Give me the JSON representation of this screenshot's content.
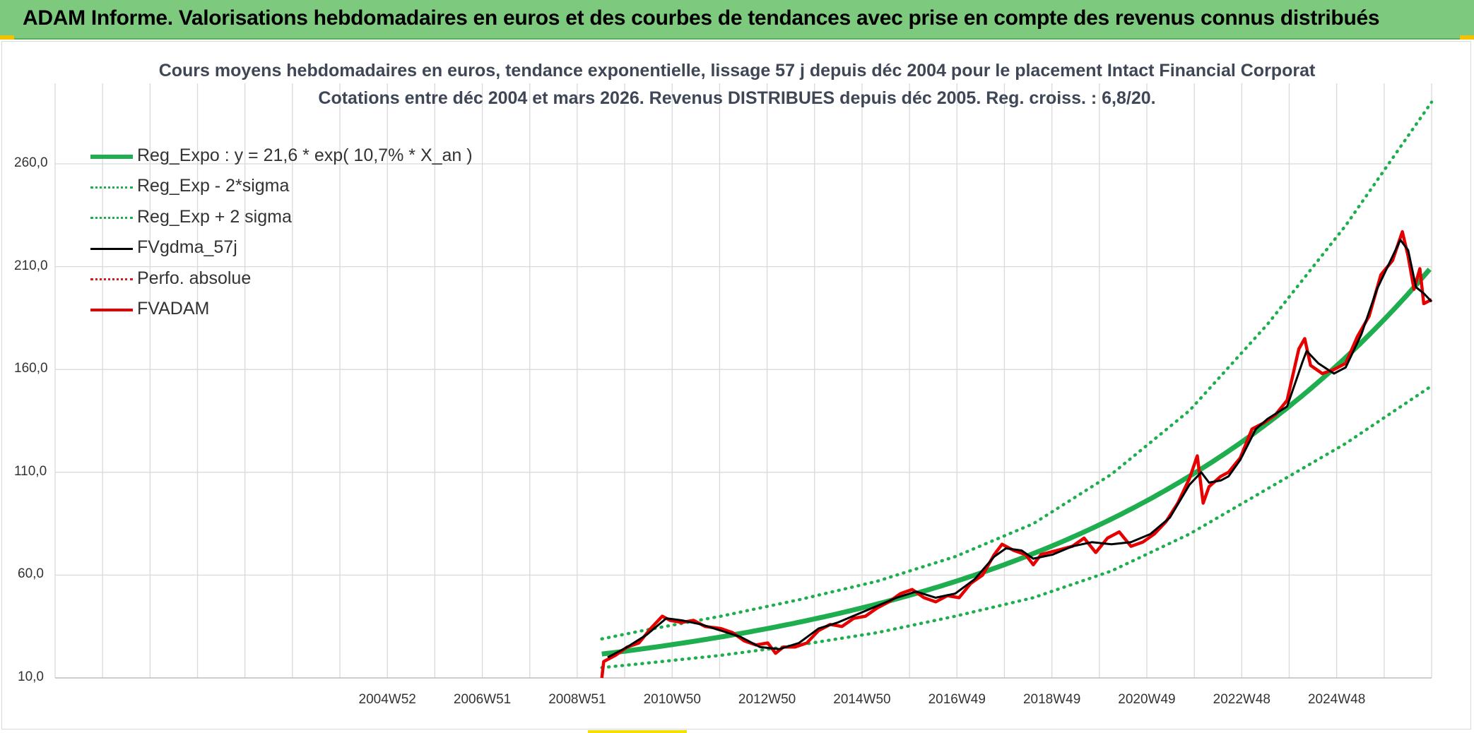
{
  "banner": {
    "title": "ADAM Informe. Valorisations hebdomadaires en euros et des courbes de tendances avec prise en compte des revenus connus distribués"
  },
  "chart_data": {
    "type": "line",
    "title": "Cours moyens hebdomadaires en euros, tendance exponentielle, lissage 57 j depuis déc 2004 pour le placement Intact Financial Corporat",
    "subtitle": "Cotations entre déc 2004 et mars 2026. Revenus DISTRIBUES depuis déc 2005. Reg. croiss. : 6,8/20.",
    "xlabel": "",
    "ylabel": "",
    "x_ticks": [
      "",
      "",
      "",
      "",
      "",
      "",
      "",
      "2004W52",
      "",
      "2006W51",
      "",
      "2008W51",
      "",
      "2010W50",
      "",
      "2012W50",
      "",
      "2014W50",
      "",
      "2016W49",
      "",
      "2018W49",
      "",
      "2020W49",
      "",
      "2022W48",
      "",
      "2024W48",
      ""
    ],
    "x_year_range": [
      1990.95,
      2026.2
    ],
    "ylim": [
      10,
      260
    ],
    "y_ticks": [
      "10,0",
      "60,0",
      "110,0",
      "160,0",
      "210,0",
      "260,0"
    ],
    "y_tick_values": [
      10,
      60,
      110,
      160,
      210,
      260
    ],
    "grid": true,
    "legend_position": "top-left",
    "colors": {
      "reg_expo": "#1fae4f",
      "reg_band": "#1fae4f",
      "fvgdma": "#000000",
      "perfo": "#d11f1f",
      "fvadam": "#e60000",
      "grid": "#d9d9d9"
    },
    "series": [
      {
        "name": "Reg_Expo : y = 21,6 * exp( 10,7% *  X_an )",
        "style": "solid-thick",
        "formula": {
          "a": 21.6,
          "rate": 0.107,
          "start_year": 2004.95,
          "end_year": 2026.2
        }
      },
      {
        "name": "Reg_Exp - 2*sigma",
        "style": "dotted",
        "points": [
          [
            2004.95,
            15
          ],
          [
            2006.0,
            17
          ],
          [
            2008.0,
            21
          ],
          [
            2010.0,
            26
          ],
          [
            2012.0,
            32
          ],
          [
            2014.0,
            40
          ],
          [
            2016.0,
            49
          ],
          [
            2018.0,
            62
          ],
          [
            2020.0,
            80
          ],
          [
            2022.0,
            102
          ],
          [
            2024.0,
            124
          ],
          [
            2026.2,
            152
          ]
        ]
      },
      {
        "name": "Reg_Exp + 2 sigma",
        "style": "dotted",
        "points": [
          [
            2004.95,
            29
          ],
          [
            2006.0,
            33
          ],
          [
            2008.0,
            40
          ],
          [
            2010.0,
            48
          ],
          [
            2012.0,
            57
          ],
          [
            2014.0,
            69
          ],
          [
            2016.0,
            85
          ],
          [
            2018.0,
            109
          ],
          [
            2020.0,
            140
          ],
          [
            2022.0,
            182
          ],
          [
            2024.0,
            230
          ],
          [
            2026.2,
            290
          ]
        ]
      },
      {
        "name": "FVgdma_57j",
        "style": "solid",
        "points": [
          [
            2005.1,
            20
          ],
          [
            2005.6,
            25
          ],
          [
            2006.1,
            31
          ],
          [
            2006.6,
            39
          ],
          [
            2007.0,
            38
          ],
          [
            2007.5,
            36
          ],
          [
            2008.0,
            33
          ],
          [
            2008.5,
            30
          ],
          [
            2009.0,
            25
          ],
          [
            2009.5,
            24
          ],
          [
            2010.0,
            27
          ],
          [
            2010.5,
            34
          ],
          [
            2011.0,
            37
          ],
          [
            2011.5,
            41
          ],
          [
            2012.0,
            45
          ],
          [
            2012.5,
            49
          ],
          [
            2013.0,
            52
          ],
          [
            2013.5,
            49
          ],
          [
            2014.0,
            51
          ],
          [
            2014.5,
            58
          ],
          [
            2015.0,
            69
          ],
          [
            2015.3,
            73
          ],
          [
            2015.7,
            72
          ],
          [
            2016.0,
            68
          ],
          [
            2016.5,
            70
          ],
          [
            2017.0,
            74
          ],
          [
            2017.5,
            76
          ],
          [
            2018.0,
            75
          ],
          [
            2018.5,
            76
          ],
          [
            2019.0,
            80
          ],
          [
            2019.5,
            88
          ],
          [
            2020.0,
            104
          ],
          [
            2020.3,
            110
          ],
          [
            2020.5,
            105
          ],
          [
            2020.8,
            106
          ],
          [
            2021.0,
            108
          ],
          [
            2021.3,
            116
          ],
          [
            2021.7,
            131
          ],
          [
            2022.0,
            136
          ],
          [
            2022.5,
            142
          ],
          [
            2022.9,
            164
          ],
          [
            2023.0,
            169
          ],
          [
            2023.3,
            163
          ],
          [
            2023.7,
            158
          ],
          [
            2024.0,
            161
          ],
          [
            2024.4,
            177
          ],
          [
            2024.8,
            199
          ],
          [
            2025.1,
            211
          ],
          [
            2025.4,
            223
          ],
          [
            2025.6,
            218
          ],
          [
            2025.8,
            200
          ],
          [
            2026.0,
            197
          ],
          [
            2026.2,
            193
          ]
        ]
      },
      {
        "name": "Perfo. absolue",
        "style": "dotted",
        "points": []
      },
      {
        "name": "FVADAM",
        "style": "solid-thick",
        "points": [
          [
            2004.95,
            10
          ],
          [
            2005.0,
            18
          ],
          [
            2005.3,
            21
          ],
          [
            2005.6,
            25
          ],
          [
            2005.9,
            27
          ],
          [
            2006.2,
            34
          ],
          [
            2006.5,
            40
          ],
          [
            2006.7,
            38
          ],
          [
            2007.0,
            37
          ],
          [
            2007.3,
            38
          ],
          [
            2007.6,
            35
          ],
          [
            2008.0,
            34
          ],
          [
            2008.3,
            32
          ],
          [
            2008.6,
            28
          ],
          [
            2008.9,
            26
          ],
          [
            2009.2,
            27
          ],
          [
            2009.4,
            22
          ],
          [
            2009.6,
            25
          ],
          [
            2009.9,
            25
          ],
          [
            2010.2,
            27
          ],
          [
            2010.5,
            33
          ],
          [
            2010.8,
            36
          ],
          [
            2011.1,
            35
          ],
          [
            2011.4,
            39
          ],
          [
            2011.7,
            40
          ],
          [
            2012.0,
            44
          ],
          [
            2012.3,
            47
          ],
          [
            2012.6,
            51
          ],
          [
            2012.9,
            53
          ],
          [
            2013.2,
            49
          ],
          [
            2013.5,
            47
          ],
          [
            2013.8,
            50
          ],
          [
            2014.1,
            49
          ],
          [
            2014.4,
            56
          ],
          [
            2014.7,
            60
          ],
          [
            2015.0,
            70
          ],
          [
            2015.2,
            75
          ],
          [
            2015.5,
            72
          ],
          [
            2015.8,
            70
          ],
          [
            2016.0,
            65
          ],
          [
            2016.2,
            70
          ],
          [
            2016.6,
            72
          ],
          [
            2017.0,
            74
          ],
          [
            2017.3,
            78
          ],
          [
            2017.6,
            71
          ],
          [
            2017.9,
            78
          ],
          [
            2018.2,
            81
          ],
          [
            2018.5,
            74
          ],
          [
            2018.8,
            76
          ],
          [
            2019.1,
            80
          ],
          [
            2019.4,
            86
          ],
          [
            2019.7,
            95
          ],
          [
            2020.0,
            107
          ],
          [
            2020.2,
            118
          ],
          [
            2020.35,
            95
          ],
          [
            2020.5,
            103
          ],
          [
            2020.8,
            108
          ],
          [
            2021.0,
            110
          ],
          [
            2021.3,
            117
          ],
          [
            2021.6,
            131
          ],
          [
            2021.9,
            134
          ],
          [
            2022.2,
            138
          ],
          [
            2022.5,
            145
          ],
          [
            2022.8,
            170
          ],
          [
            2022.95,
            175
          ],
          [
            2023.1,
            162
          ],
          [
            2023.4,
            158
          ],
          [
            2023.7,
            160
          ],
          [
            2024.0,
            163
          ],
          [
            2024.3,
            176
          ],
          [
            2024.6,
            186
          ],
          [
            2024.9,
            206
          ],
          [
            2025.2,
            213
          ],
          [
            2025.45,
            227
          ],
          [
            2025.6,
            215
          ],
          [
            2025.75,
            199
          ],
          [
            2025.9,
            209
          ],
          [
            2026.0,
            192
          ],
          [
            2026.2,
            194
          ]
        ]
      }
    ]
  }
}
